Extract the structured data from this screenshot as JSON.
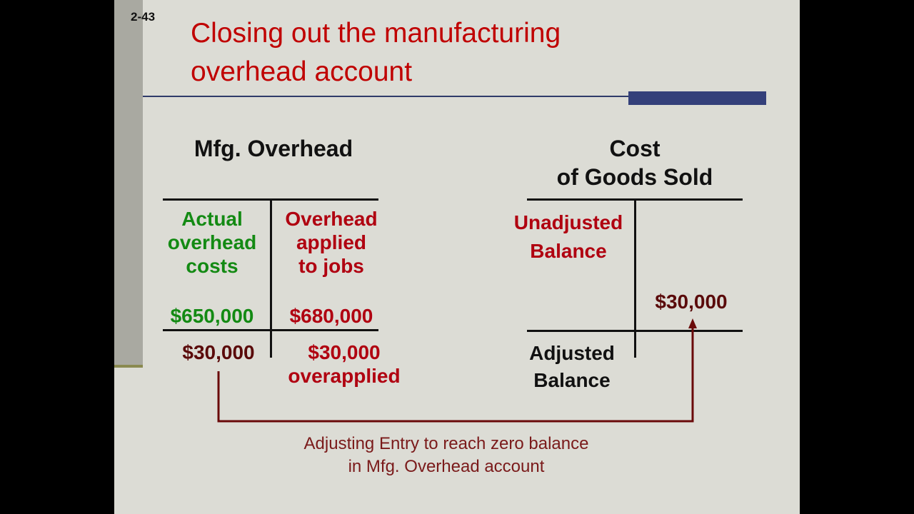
{
  "slide_number": "2-43",
  "title": {
    "line1": "Closing out the manufacturing",
    "line2": "overhead account"
  },
  "mfg_overhead": {
    "heading": "Mfg. Overhead",
    "debit_label": [
      "Actual",
      "overhead",
      "costs"
    ],
    "credit_label": [
      "Overhead",
      "applied",
      "to jobs"
    ],
    "debit_amount": "$650,000",
    "credit_amount": "$680,000",
    "debit_adjustment": "$30,000",
    "credit_balance": [
      "$30,000",
      "overapplied"
    ]
  },
  "cogs": {
    "heading": [
      "Cost",
      "of Goods Sold"
    ],
    "unadjusted": [
      "Unadjusted",
      "Balance"
    ],
    "credit_amount": "$30,000",
    "adjusted": [
      "Adjusted",
      "Balance"
    ]
  },
  "caption": [
    "Adjusting Entry to reach zero balance",
    "in Mfg. Overhead account"
  ],
  "colors": {
    "title": "#c00000",
    "debit": "#138a13",
    "credit": "#b00010",
    "arrow": "#6a0a0a",
    "accent": "#34407a"
  }
}
